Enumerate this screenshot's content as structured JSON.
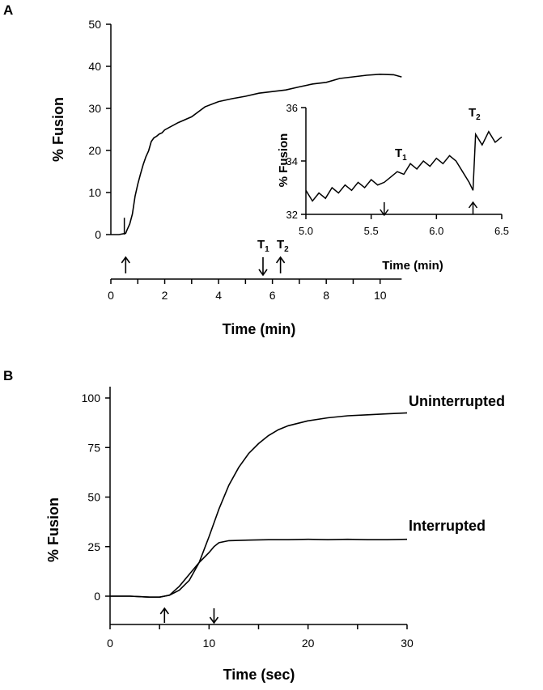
{
  "panels": {
    "a": {
      "letter": "A"
    },
    "b": {
      "letter": "B"
    }
  },
  "chart_data": [
    {
      "id": "A",
      "type": "line",
      "xlabel": "Time (min)",
      "ylabel": "% Fusion",
      "xlim": [
        0,
        11
      ],
      "ylim": [
        0,
        50
      ],
      "x_ticks": [
        0,
        2,
        4,
        6,
        8,
        10
      ],
      "y_ticks": [
        0,
        10,
        20,
        30,
        40,
        50
      ],
      "annotations": {
        "t1": "T",
        "t1_sub": "1",
        "t2": "T",
        "t2_sub": "2"
      },
      "arrows": [
        {
          "x": 0.55,
          "direction": "up"
        },
        {
          "x": 5.65,
          "direction": "down",
          "label": "T1"
        },
        {
          "x": 6.3,
          "direction": "up",
          "label": "T2"
        }
      ],
      "series": [
        {
          "x": [
            0,
            0.3,
            0.55,
            0.6,
            0.7,
            0.8,
            0.9,
            1.0,
            1.1,
            1.2,
            1.3,
            1.4,
            1.5,
            1.6,
            1.7,
            1.8,
            1.9,
            2.0,
            2.5,
            3.0,
            3.5,
            4.0,
            4.5,
            5.0,
            5.5,
            6.0,
            6.5,
            7.0,
            7.5,
            8.0,
            8.5,
            9.0,
            9.5,
            10.0,
            10.5,
            10.8
          ],
          "values": [
            0,
            0,
            0.3,
            1,
            2.5,
            5,
            9,
            12,
            14.5,
            16.5,
            18.5,
            20,
            22,
            23,
            23.5,
            23.8,
            24.2,
            25,
            26.5,
            28,
            30.5,
            31.5,
            32.3,
            33,
            33.5,
            34,
            34.5,
            35,
            35.8,
            36.3,
            37,
            37.5,
            38,
            38,
            38,
            37.6
          ]
        }
      ]
    },
    {
      "id": "A-inset",
      "type": "line",
      "xlabel": "Time (min)",
      "ylabel": "% Fusion",
      "xlim": [
        5.0,
        6.5
      ],
      "ylim": [
        32,
        36
      ],
      "x_ticks": [
        "5.0",
        "5.5",
        "6.0",
        "6.5"
      ],
      "y_ticks": [
        32,
        34,
        36
      ],
      "annotations": {
        "t1": "T",
        "t1_sub": "1",
        "t2": "T",
        "t2_sub": "2"
      },
      "arrows": [
        {
          "x": 5.6,
          "direction": "down",
          "label": "T1"
        },
        {
          "x": 6.28,
          "direction": "up",
          "label": "T2"
        }
      ],
      "series": [
        {
          "x": [
            5.0,
            5.05,
            5.1,
            5.15,
            5.2,
            5.25,
            5.3,
            5.35,
            5.4,
            5.45,
            5.5,
            5.55,
            5.6,
            5.65,
            5.7,
            5.75,
            5.8,
            5.85,
            5.9,
            5.95,
            6.0,
            6.05,
            6.1,
            6.15,
            6.2,
            6.25,
            6.28,
            6.3,
            6.35,
            6.4,
            6.45,
            6.5
          ],
          "values": [
            32.9,
            32.5,
            32.8,
            32.6,
            33.0,
            32.8,
            33.1,
            32.9,
            33.2,
            33.0,
            33.3,
            33.1,
            33.2,
            33.4,
            33.6,
            33.5,
            33.9,
            33.7,
            34.0,
            33.8,
            34.1,
            33.9,
            34.2,
            34.0,
            33.6,
            33.2,
            32.9,
            35.0,
            34.6,
            35.1,
            34.7,
            34.9
          ]
        }
      ]
    },
    {
      "id": "B",
      "type": "line",
      "xlabel": "Time (sec)",
      "ylabel": "% Fusion",
      "xlim": [
        0,
        30
      ],
      "ylim": [
        -15,
        100
      ],
      "x_ticks": [
        0,
        10,
        20,
        30
      ],
      "y_ticks": [
        0,
        25,
        50,
        75,
        100
      ],
      "arrows": [
        {
          "x": 5.5,
          "direction": "up"
        },
        {
          "x": 10.5,
          "direction": "down"
        }
      ],
      "series": [
        {
          "name": "Uninterrupted",
          "x": [
            0,
            2,
            4,
            5,
            5.5,
            6,
            7,
            8,
            9,
            10,
            11,
            12,
            13,
            14,
            15,
            16,
            17,
            18,
            20,
            22,
            24,
            26,
            28,
            30
          ],
          "values": [
            0,
            0,
            -0.5,
            -0.5,
            0,
            0.5,
            3,
            8,
            17,
            30,
            44,
            56,
            65,
            72,
            77,
            81,
            84,
            86,
            88.5,
            90,
            91,
            91.5,
            92,
            92.5
          ]
        },
        {
          "name": "Interrupted",
          "x": [
            0,
            2,
            4,
            5,
            5.5,
            6,
            7,
            8,
            9,
            10,
            10.5,
            11,
            12,
            14,
            16,
            18,
            20,
            22,
            24,
            26,
            28,
            30
          ],
          "values": [
            0,
            0,
            -0.5,
            -0.5,
            0,
            0.5,
            5,
            11,
            17,
            22,
            25,
            27,
            28,
            28.3,
            28.5,
            28.5,
            28.7,
            28.5,
            28.7,
            28.5,
            28.5,
            28.7
          ]
        }
      ]
    }
  ]
}
